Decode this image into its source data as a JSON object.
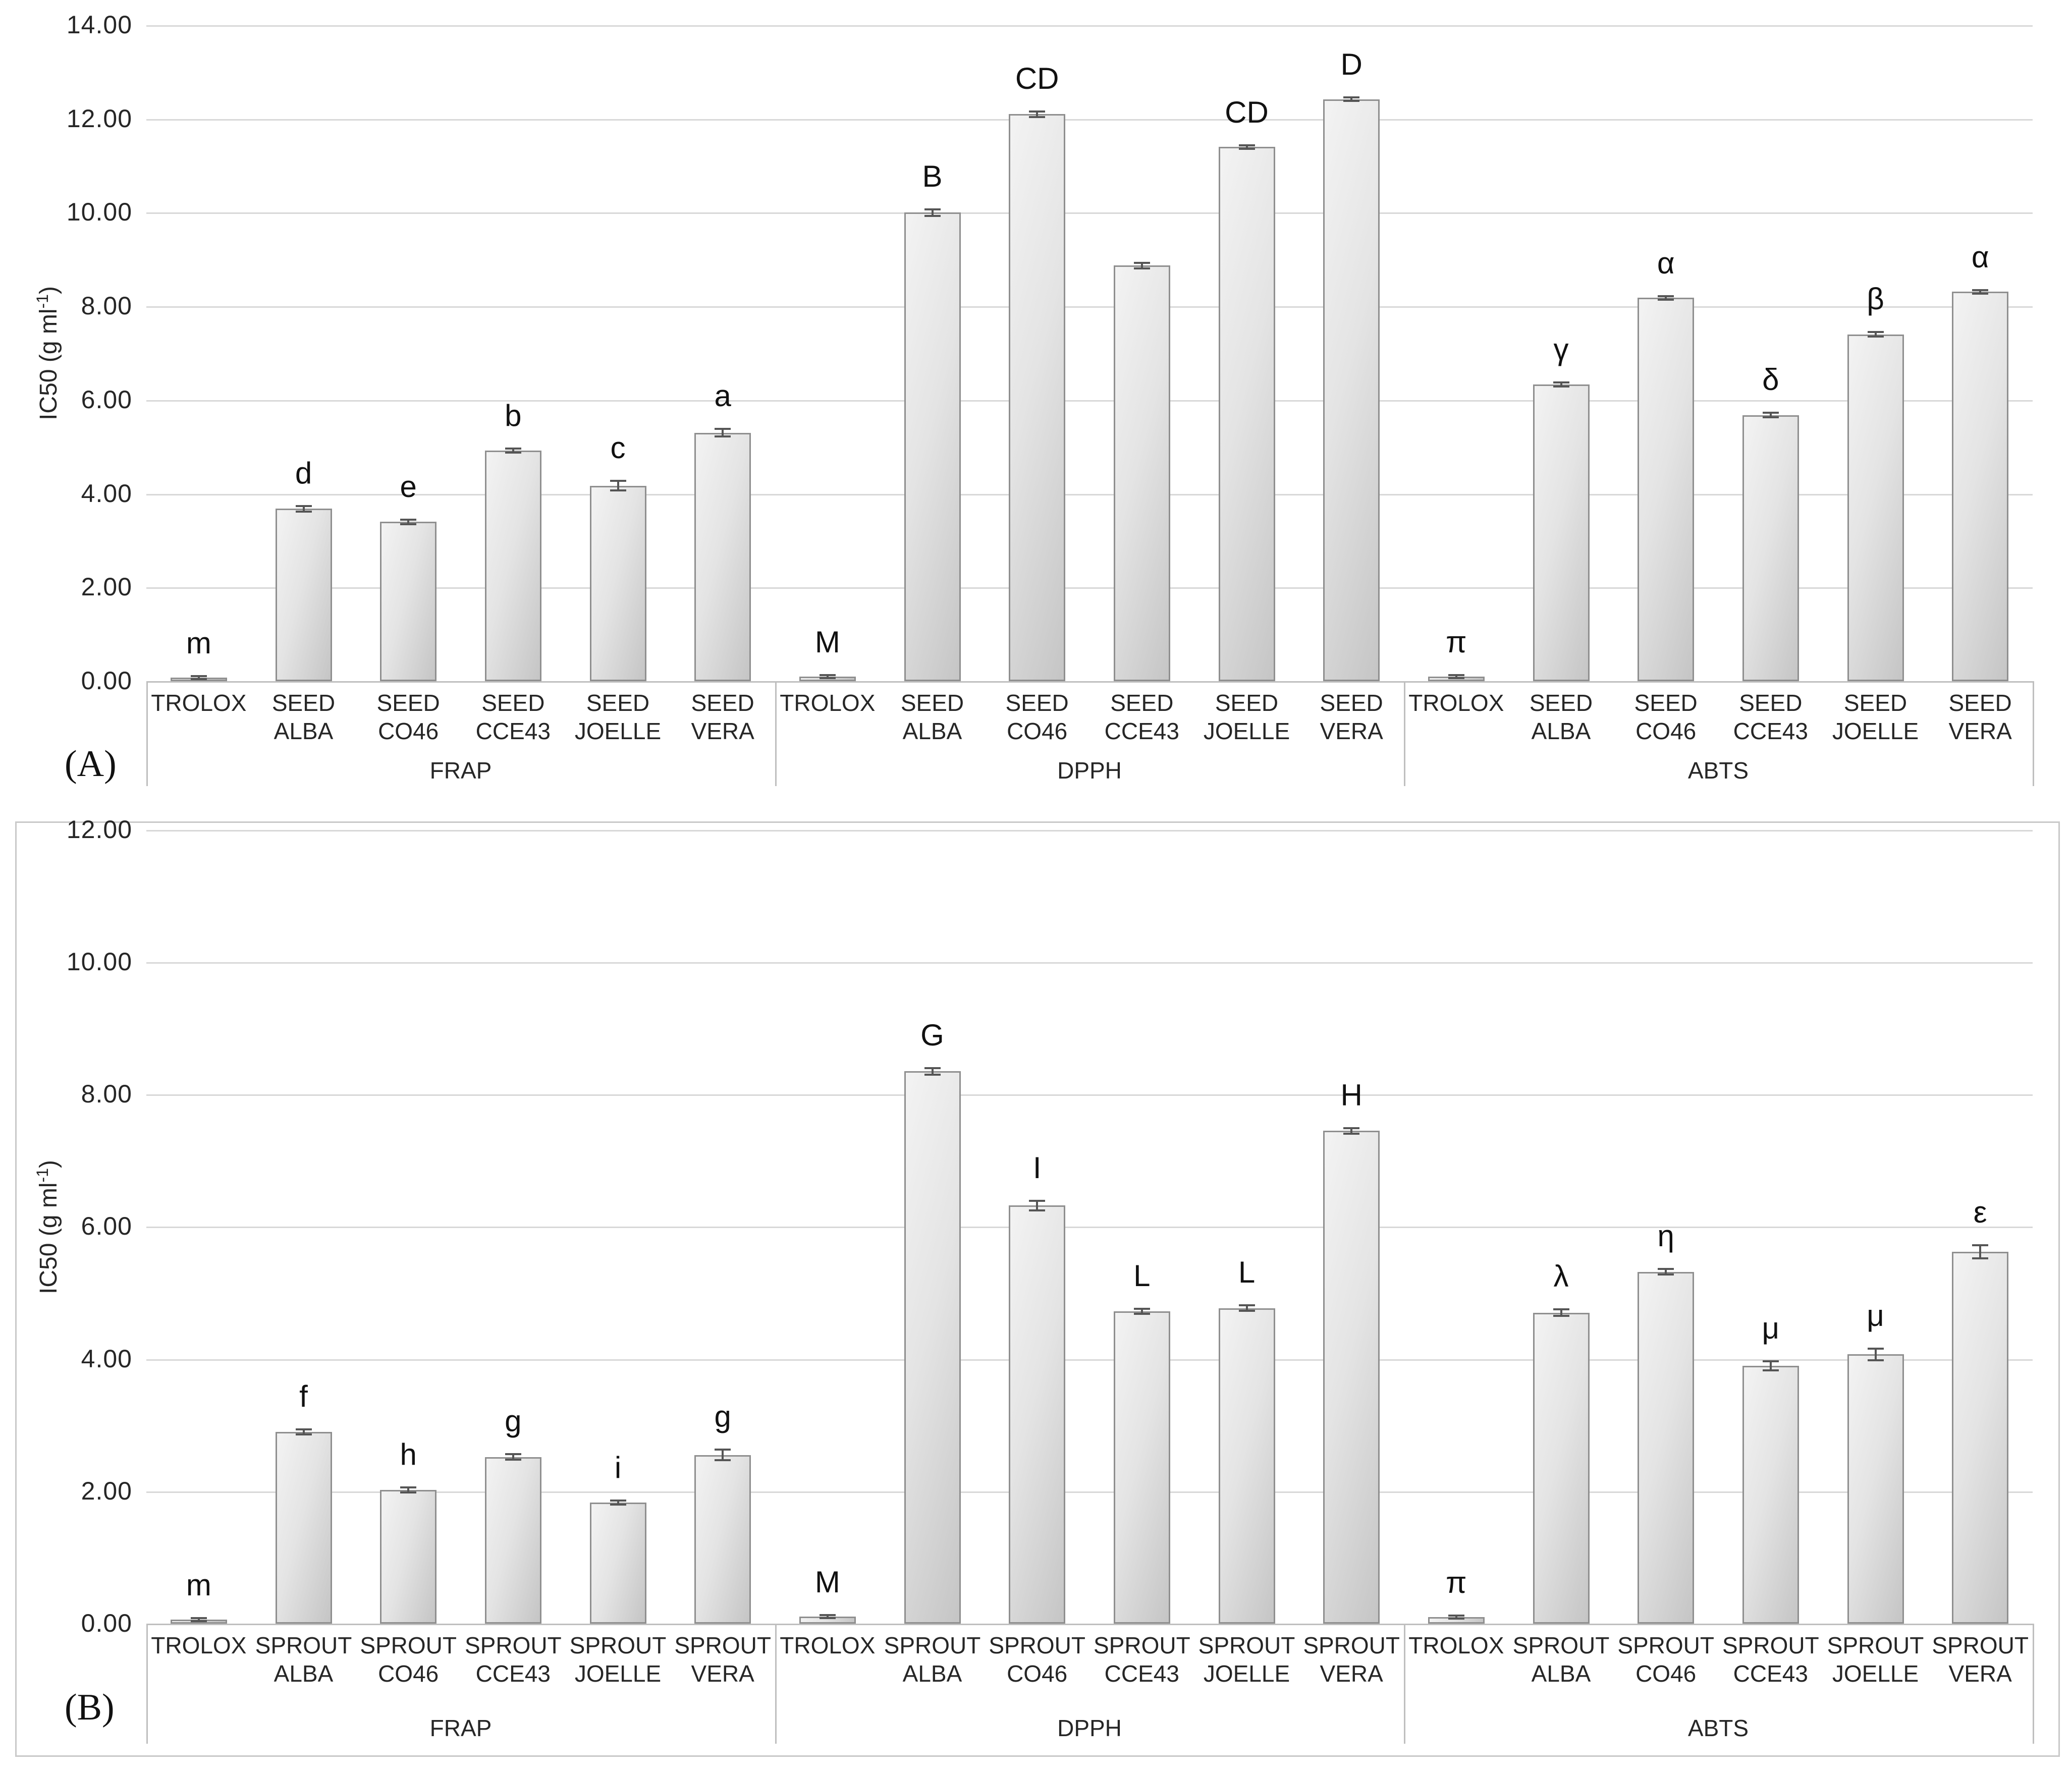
{
  "colors": {
    "bar_fill_light": "#f3f3f3",
    "bar_fill_dark": "#c5c5c5",
    "bar_border": "#8f8f8f",
    "gridline": "#d8d8d8",
    "axis_line": "#bfbfbf",
    "error_bar": "#555555",
    "text": "#262626",
    "panel_border": "#c9c9c9"
  },
  "chart_data": [
    {
      "type": "bar",
      "panel_label": "(A)",
      "ylabel_prefix": "IC50 (g ml",
      "ylabel_sup": "-1",
      "ylabel_suffix": ")",
      "ylim": [
        0,
        14
      ],
      "ytick_step": 2,
      "yticks": [
        "0.00",
        "2.00",
        "4.00",
        "6.00",
        "8.00",
        "10.00",
        "12.00",
        "14.00"
      ],
      "grid": true,
      "legend": "none",
      "groups": [
        {
          "name": "FRAP",
          "bars": [
            {
              "label": [
                "TROLOX"
              ],
              "value": 0.07,
              "err": 0.02,
              "letter": "m"
            },
            {
              "label": [
                "SEED",
                "ALBA"
              ],
              "value": 3.68,
              "err": 0.06,
              "letter": "d"
            },
            {
              "label": [
                "SEED",
                "CO46"
              ],
              "value": 3.4,
              "err": 0.05,
              "letter": "e"
            },
            {
              "label": [
                "SEED",
                "CCE43"
              ],
              "value": 4.92,
              "err": 0.04,
              "letter": "b"
            },
            {
              "label": [
                "SEED",
                "JOELLE"
              ],
              "value": 4.17,
              "err": 0.1,
              "letter": "c"
            },
            {
              "label": [
                "SEED",
                "VERA"
              ],
              "value": 5.3,
              "err": 0.08,
              "letter": "a"
            }
          ]
        },
        {
          "name": "DPPH",
          "bars": [
            {
              "label": [
                "TROLOX"
              ],
              "value": 0.1,
              "err": 0.02,
              "letter": "M"
            },
            {
              "label": [
                "SEED",
                "ALBA"
              ],
              "value": 10.0,
              "err": 0.07,
              "letter": "B"
            },
            {
              "label": [
                "SEED",
                "CO46"
              ],
              "value": 12.1,
              "err": 0.06,
              "letter": "CD"
            },
            {
              "label": [
                "SEED",
                "CCE43"
              ],
              "value": 8.87,
              "err": 0.06,
              "letter": ""
            },
            {
              "label": [
                "SEED",
                "JOELLE"
              ],
              "value": 11.4,
              "err": 0.04,
              "letter": "CD"
            },
            {
              "label": [
                "SEED",
                "VERA"
              ],
              "value": 12.42,
              "err": 0.04,
              "letter": "D"
            }
          ]
        },
        {
          "name": "ABTS",
          "bars": [
            {
              "label": [
                "TROLOX"
              ],
              "value": 0.1,
              "err": 0.02,
              "letter": "π"
            },
            {
              "label": [
                "SEED",
                "ALBA"
              ],
              "value": 6.33,
              "err": 0.04,
              "letter": "γ"
            },
            {
              "label": [
                "SEED",
                "CO46"
              ],
              "value": 8.18,
              "err": 0.04,
              "letter": "α"
            },
            {
              "label": [
                "SEED",
                "CCE43"
              ],
              "value": 5.68,
              "err": 0.05,
              "letter": "δ"
            },
            {
              "label": [
                "SEED",
                "JOELLE"
              ],
              "value": 7.4,
              "err": 0.05,
              "letter": "β"
            },
            {
              "label": [
                "SEED",
                "VERA"
              ],
              "value": 8.31,
              "err": 0.04,
              "letter": "α"
            }
          ]
        }
      ]
    },
    {
      "type": "bar",
      "panel_label": "(B)",
      "ylabel_prefix": "IC50 (g ml",
      "ylabel_sup": "-1",
      "ylabel_suffix": ")",
      "ylim": [
        0,
        12
      ],
      "ytick_step": 2,
      "yticks": [
        "0.00",
        "2.00",
        "4.00",
        "6.00",
        "8.00",
        "10.00",
        "12.00"
      ],
      "grid": true,
      "legend": "none",
      "groups": [
        {
          "name": "FRAP",
          "bars": [
            {
              "label": [
                "TROLOX"
              ],
              "value": 0.06,
              "err": 0.02,
              "letter": "m"
            },
            {
              "label": [
                "SPROUT",
                "ALBA"
              ],
              "value": 2.9,
              "err": 0.04,
              "letter": "f"
            },
            {
              "label": [
                "SPROUT",
                "CO46"
              ],
              "value": 2.02,
              "err": 0.04,
              "letter": "h"
            },
            {
              "label": [
                "SPROUT",
                "CCE43"
              ],
              "value": 2.52,
              "err": 0.04,
              "letter": "g"
            },
            {
              "label": [
                "SPROUT",
                "JOELLE"
              ],
              "value": 1.83,
              "err": 0.03,
              "letter": "i"
            },
            {
              "label": [
                "SPROUT",
                "VERA"
              ],
              "value": 2.55,
              "err": 0.08,
              "letter": "g"
            }
          ]
        },
        {
          "name": "DPPH",
          "bars": [
            {
              "label": [
                "TROLOX"
              ],
              "value": 0.11,
              "err": 0.02,
              "letter": "M"
            },
            {
              "label": [
                "SPROUT",
                "ALBA"
              ],
              "value": 8.35,
              "err": 0.05,
              "letter": "G"
            },
            {
              "label": [
                "SPROUT",
                "CO46"
              ],
              "value": 6.32,
              "err": 0.07,
              "letter": "I"
            },
            {
              "label": [
                "SPROUT",
                "CCE43"
              ],
              "value": 4.72,
              "err": 0.04,
              "letter": "L"
            },
            {
              "label": [
                "SPROUT",
                "JOELLE"
              ],
              "value": 4.77,
              "err": 0.04,
              "letter": "L"
            },
            {
              "label": [
                "SPROUT",
                "VERA"
              ],
              "value": 7.45,
              "err": 0.04,
              "letter": "H"
            }
          ]
        },
        {
          "name": "ABTS",
          "bars": [
            {
              "label": [
                "TROLOX"
              ],
              "value": 0.1,
              "err": 0.02,
              "letter": "π"
            },
            {
              "label": [
                "SPROUT",
                "ALBA"
              ],
              "value": 4.7,
              "err": 0.05,
              "letter": "λ"
            },
            {
              "label": [
                "SPROUT",
                "CO46"
              ],
              "value": 5.32,
              "err": 0.04,
              "letter": "η"
            },
            {
              "label": [
                "SPROUT",
                "CCE43"
              ],
              "value": 3.9,
              "err": 0.07,
              "letter": "μ"
            },
            {
              "label": [
                "SPROUT",
                "JOELLE"
              ],
              "value": 4.07,
              "err": 0.09,
              "letter": "μ"
            },
            {
              "label": [
                "SPROUT",
                "VERA"
              ],
              "value": 5.62,
              "err": 0.1,
              "letter": "ε"
            }
          ]
        }
      ]
    }
  ]
}
